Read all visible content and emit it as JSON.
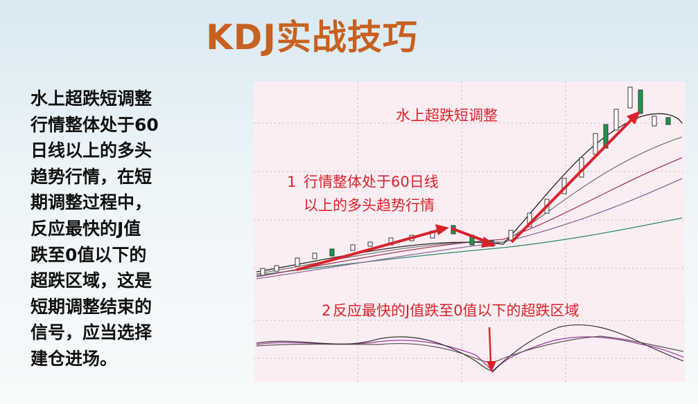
{
  "header": {
    "title": "KDJ实战技巧"
  },
  "description": {
    "lines": [
      "水上超跌短调整",
      "行情整体处于60",
      "日线以上的多头",
      "趋势行情，在短",
      "期调整过程中，",
      "反应最快的J值",
      "跌至0值以下的",
      "超跌区域，这是",
      "短期调整结束的",
      "信号，应当选择",
      "建仓进场。"
    ]
  },
  "chart": {
    "heading": "水上超跌短调整",
    "note1": {
      "number": "1",
      "lines": [
        "行情整体处于60日线",
        "以上的多头趋势行情"
      ]
    },
    "note2": {
      "number": "2",
      "text": "反应最快的J值跌至0值以下的超跌区域"
    }
  }
}
